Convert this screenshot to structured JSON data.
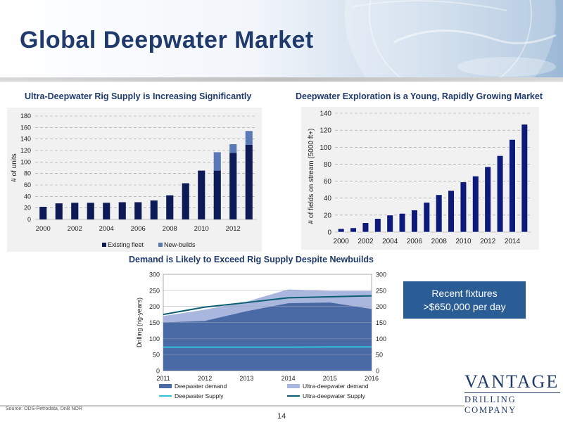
{
  "slide": {
    "title": "Global Deepwater Market",
    "source": "Source: ODS-Petrodata, DnB NOR",
    "page_number": "14",
    "callout_line1": "Recent fixtures",
    "callout_line2": ">$650,000 per day",
    "logo_main": "VANTAGE",
    "logo_sub": "DRILLING COMPANY",
    "colors": {
      "title": "#1f3a6b",
      "callout": "#2a5d95",
      "panel": "#f1f1f1"
    }
  },
  "chart_data": [
    {
      "type": "bar",
      "stacked": true,
      "title": "Ultra-Deepwater Rig Supply is Increasing Significantly",
      "ylabel": "# of units",
      "ylim": [
        0,
        180
      ],
      "yticks": [
        0,
        20,
        40,
        60,
        80,
        100,
        120,
        140,
        160,
        180
      ],
      "x": [
        2000,
        2001,
        2002,
        2003,
        2004,
        2005,
        2006,
        2007,
        2008,
        2009,
        2010,
        2011,
        2012,
        2013
      ],
      "xtick_labels": [
        "2000",
        "2002",
        "2004",
        "2006",
        "2008",
        "2010",
        "2012"
      ],
      "series": [
        {
          "name": "Existing fleet",
          "color": "#0d1a55",
          "values": [
            22,
            28,
            29,
            29,
            29,
            30,
            30,
            33,
            42,
            63,
            85,
            85,
            116,
            130
          ]
        },
        {
          "name": "New-builds",
          "color": "#5a79b6",
          "values": [
            0,
            0,
            0,
            0,
            0,
            0,
            0,
            0,
            0,
            0,
            0,
            32,
            15,
            24
          ]
        }
      ],
      "grid": "horizontal dashed",
      "legend": "bottom"
    },
    {
      "type": "bar",
      "title": "Deepwater Exploration is a Young, Rapidly Growing Market",
      "ylabel": "# of fields on stream (5000 ft+)",
      "ylim": [
        0,
        140
      ],
      "yticks": [
        0,
        20,
        40,
        60,
        80,
        100,
        120,
        140
      ],
      "x": [
        2000,
        2001,
        2002,
        2003,
        2004,
        2005,
        2006,
        2007,
        2008,
        2009,
        2010,
        2011,
        2012,
        2013,
        2014,
        2015
      ],
      "xtick_labels": [
        "2000",
        "2002",
        "2004",
        "2006",
        "2008",
        "2010",
        "2012",
        "2014"
      ],
      "series": [
        {
          "name": "Fields on stream",
          "color": "#0d1a7a",
          "values": [
            4,
            5,
            11,
            16,
            20,
            22,
            26,
            35,
            44,
            49,
            59,
            66,
            77,
            90,
            109,
            127
          ]
        }
      ],
      "grid": "horizontal dashed",
      "legend": "none"
    },
    {
      "type": "area",
      "title": "Demand is Likely to Exceed Rig Supply Despite Newbuilds",
      "ylabel": "Drilling (rig-years)",
      "ylim": [
        0,
        300
      ],
      "yticks": [
        0,
        50,
        100,
        150,
        200,
        250,
        300
      ],
      "x": [
        2011,
        2012,
        2013,
        2014,
        2015,
        2016
      ],
      "xtick_labels": [
        "2011",
        "2012",
        "2013",
        "2014",
        "2015",
        "2016"
      ],
      "areas": [
        {
          "name": "Deepwater demand",
          "color": "#4a6aa5",
          "values": [
            150,
            155,
            185,
            210,
            212,
            192
          ]
        },
        {
          "name": "Ultra-deepwater demand",
          "color": "#a9b6de",
          "values": [
            170,
            190,
            215,
            253,
            248,
            248
          ]
        }
      ],
      "lines": [
        {
          "name": "Deepwater Supply",
          "color": "#33c0dd",
          "values": [
            73,
            73,
            73,
            73,
            74,
            74
          ]
        },
        {
          "name": "Ultra-deepwater Supply",
          "color": "#0b5e73",
          "values": [
            175,
            198,
            212,
            227,
            230,
            233
          ]
        }
      ],
      "grid": "horizontal",
      "legend": "bottom"
    }
  ]
}
